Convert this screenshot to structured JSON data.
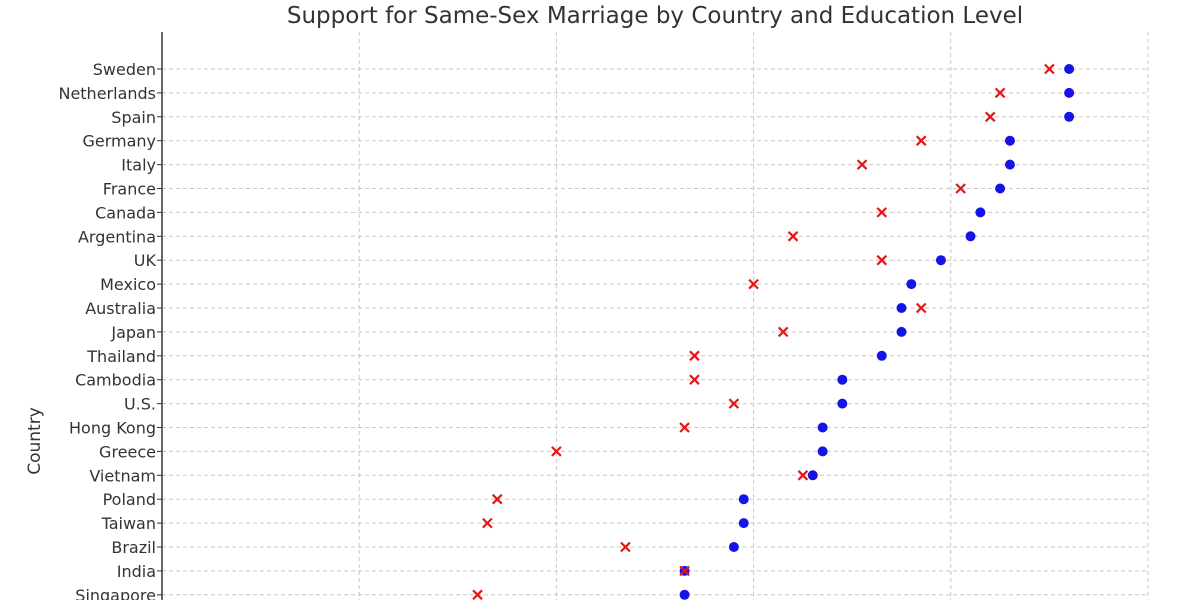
{
  "chart_data": {
    "type": "scatter",
    "title": "Support for Same-Sex Marriage by Country and Education Level",
    "ylabel": "Country",
    "xlim": [
      0,
      100
    ],
    "x_gridlines": [
      20,
      40,
      60,
      80,
      100
    ],
    "grid": true,
    "categories": [
      "Sweden",
      "Netherlands",
      "Spain",
      "Germany",
      "Italy",
      "France",
      "Canada",
      "Argentina",
      "UK",
      "Mexico",
      "Australia",
      "Japan",
      "Thailand",
      "Cambodia",
      "U.S.",
      "Hong Kong",
      "Greece",
      "Vietnam",
      "Poland",
      "Taiwan",
      "Brazil",
      "India",
      "Singapore"
    ],
    "series": [
      {
        "marker": "circle",
        "color": "#1414e6",
        "values": [
          92,
          92,
          92,
          86,
          86,
          85,
          83,
          82,
          79,
          76,
          75,
          75,
          73,
          69,
          69,
          67,
          67,
          66,
          59,
          59,
          58,
          53,
          53
        ]
      },
      {
        "marker": "x",
        "color": "#e61414",
        "values": [
          90,
          85,
          84,
          77,
          71,
          81,
          73,
          64,
          73,
          60,
          77,
          63,
          54,
          54,
          58,
          53,
          40,
          65,
          34,
          33,
          47,
          53,
          32
        ]
      }
    ]
  }
}
